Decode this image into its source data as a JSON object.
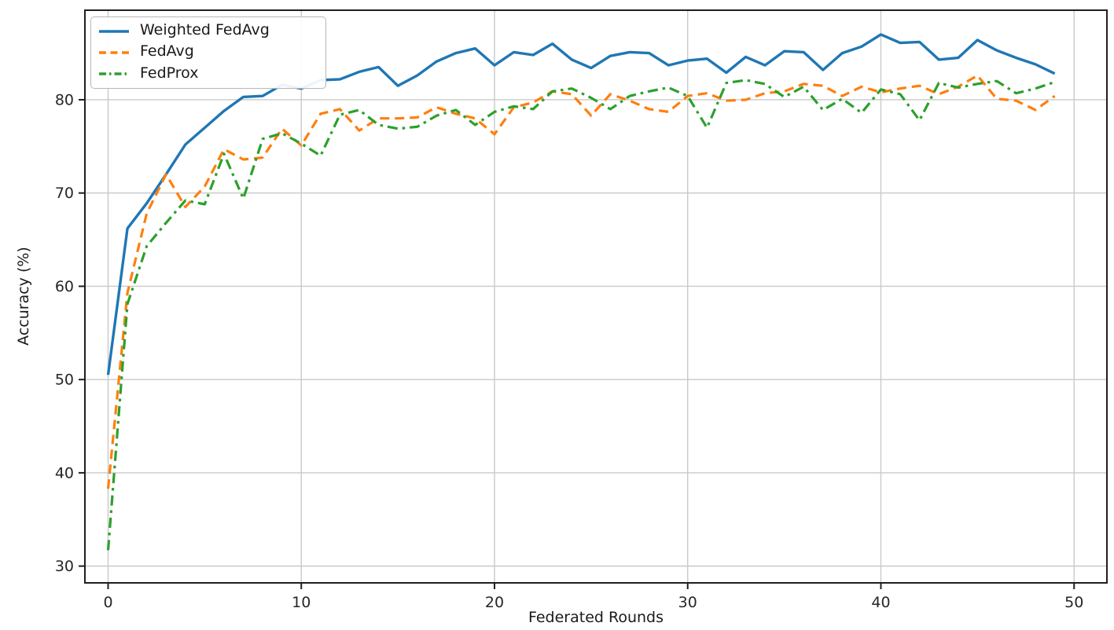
{
  "figure": {
    "background": "#ffffff"
  },
  "axes": {
    "spine_color": "#1f1f1f",
    "grid_color": "#c9c9c9",
    "tick_color": "#1f1f1f",
    "tick_label_color": "#262626",
    "tick_font_size": 19,
    "x_ticks": [
      0,
      10,
      20,
      30,
      40,
      50
    ],
    "y_ticks": [
      30,
      40,
      50,
      60,
      70,
      80
    ]
  },
  "legend": {
    "position": "upper left",
    "border_color": "#b7b7b7"
  },
  "chart_data": {
    "type": "line",
    "title": "",
    "xlabel": "Federated Rounds",
    "ylabel": "Accuracy (%)",
    "grid": true,
    "legend_position": "upper left",
    "xlim": [
      -1.2,
      51.7
    ],
    "ylim": [
      28.2,
      89.6
    ],
    "x_ticks": [
      0,
      10,
      20,
      30,
      40,
      50
    ],
    "y_ticks": [
      30,
      40,
      50,
      60,
      70,
      80
    ],
    "x": [
      0,
      1,
      2,
      3,
      4,
      5,
      6,
      7,
      8,
      9,
      10,
      11,
      12,
      13,
      14,
      15,
      16,
      17,
      18,
      19,
      20,
      21,
      22,
      23,
      24,
      25,
      26,
      27,
      28,
      29,
      30,
      31,
      32,
      33,
      34,
      35,
      36,
      37,
      38,
      39,
      40,
      41,
      42,
      43,
      44,
      45,
      46,
      47,
      48,
      49
    ],
    "series": [
      {
        "name": "Weighted FedAvg",
        "color": "#1f77b4",
        "line_style": "solid",
        "line_width": 3.4,
        "values": [
          50.5,
          66.2,
          68.9,
          72.0,
          75.2,
          77.0,
          78.8,
          80.3,
          80.4,
          81.6,
          81.2,
          82.1,
          82.2,
          83.0,
          83.5,
          81.5,
          82.6,
          84.1,
          85.0,
          85.5,
          83.7,
          85.1,
          84.8,
          86.0,
          84.3,
          83.4,
          84.7,
          85.1,
          85.0,
          83.7,
          84.2,
          84.4,
          82.9,
          84.6,
          83.7,
          85.2,
          85.1,
          83.2,
          85.0,
          85.7,
          87.0,
          86.1,
          86.2,
          84.3,
          84.5,
          86.4,
          85.3,
          84.5,
          83.8,
          82.8
        ]
      },
      {
        "name": "FedAvg",
        "color": "#ff7f0e",
        "line_style": "dashed",
        "line_width": 3.2,
        "values": [
          38.3,
          59.3,
          67.8,
          72.0,
          68.5,
          70.7,
          74.7,
          73.6,
          73.8,
          76.9,
          75.1,
          78.5,
          79.0,
          76.7,
          78.0,
          78.0,
          78.1,
          79.2,
          78.5,
          78.0,
          76.3,
          79.2,
          79.7,
          80.9,
          80.6,
          78.3,
          80.6,
          79.9,
          79.0,
          78.7,
          80.4,
          80.7,
          79.9,
          80.0,
          80.7,
          80.9,
          81.7,
          81.5,
          80.4,
          81.4,
          80.8,
          81.2,
          81.5,
          80.6,
          81.4,
          82.6,
          80.1,
          79.9,
          78.9,
          80.4
        ]
      },
      {
        "name": "FedProx",
        "color": "#2ca02c",
        "line_style": "dashdot",
        "line_width": 3.2,
        "values": [
          31.7,
          58.1,
          64.3,
          66.8,
          69.2,
          68.8,
          74.2,
          69.4,
          75.8,
          76.4,
          75.3,
          74.0,
          78.4,
          78.9,
          77.3,
          76.9,
          77.1,
          78.3,
          78.9,
          77.3,
          78.7,
          79.3,
          79.0,
          80.9,
          81.2,
          80.2,
          79.0,
          80.4,
          80.9,
          81.3,
          80.4,
          77.0,
          81.8,
          82.1,
          81.7,
          80.3,
          81.4,
          78.9,
          80.1,
          78.6,
          81.1,
          80.6,
          77.8,
          81.8,
          81.3,
          81.7,
          82.0,
          80.7,
          81.2,
          81.9
        ]
      }
    ]
  }
}
